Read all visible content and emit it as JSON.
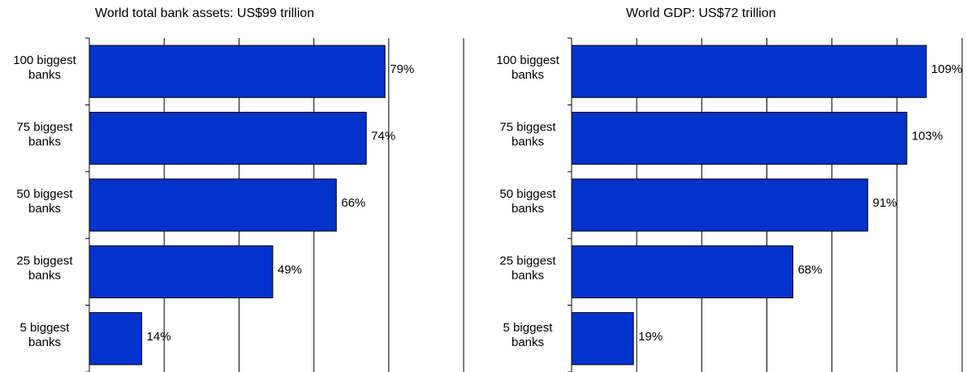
{
  "chart_data": [
    {
      "type": "bar",
      "orientation": "horizontal",
      "title": "World total bank assets: US$99 trillion",
      "categories": [
        "100 biggest banks",
        "75 biggest banks",
        "50 biggest banks",
        "25 biggest banks",
        "5 biggest banks"
      ],
      "values": [
        79,
        74,
        66,
        49,
        14
      ],
      "data_labels": [
        "79%",
        "74%",
        "66%",
        "49%",
        "14%"
      ],
      "xlim": [
        0,
        100
      ],
      "grid": true,
      "colors": {
        "bar": "#0033cc"
      }
    },
    {
      "type": "bar",
      "orientation": "horizontal",
      "title": "World GDP: US$72 trillion",
      "categories": [
        "100 biggest banks",
        "75 biggest banks",
        "50 biggest banks",
        "25 biggest banks",
        "5 biggest banks"
      ],
      "values": [
        109,
        103,
        91,
        68,
        19
      ],
      "data_labels": [
        "109%",
        "103%",
        "91%",
        "68%",
        "19%"
      ],
      "xlim": [
        0,
        120
      ],
      "grid": true,
      "colors": {
        "bar": "#0033cc"
      }
    }
  ]
}
